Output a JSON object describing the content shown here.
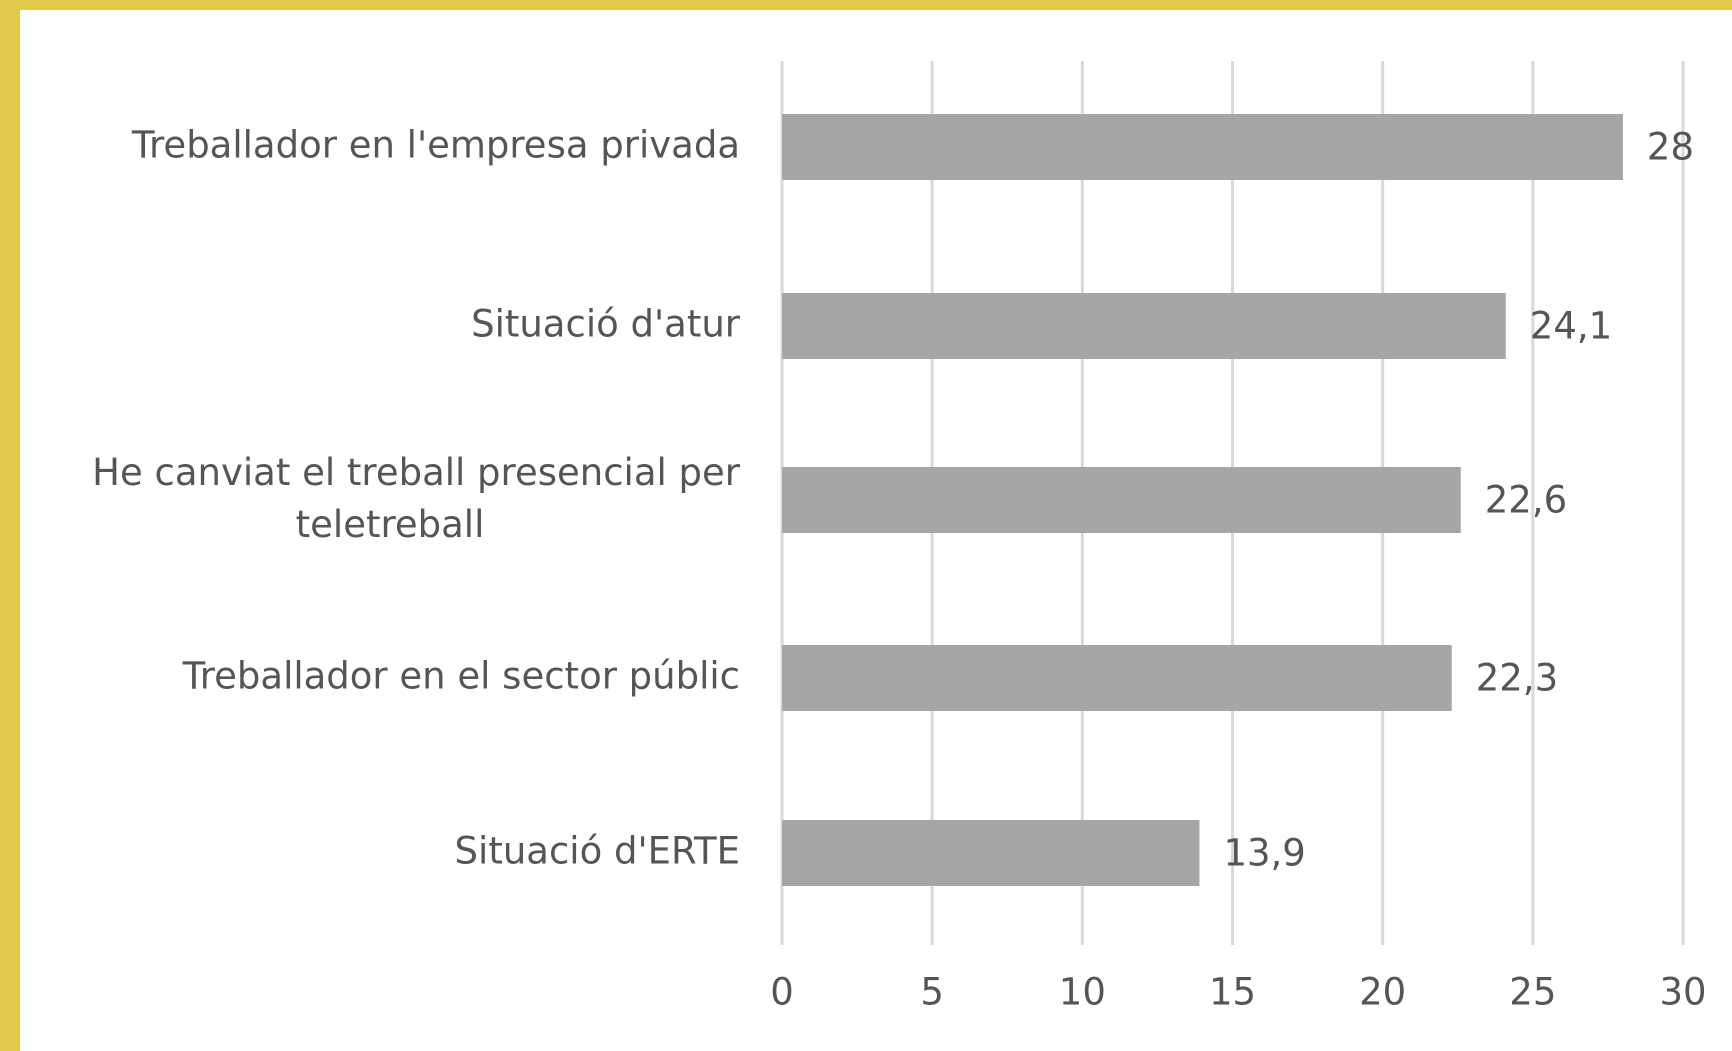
{
  "chart_data": {
    "type": "bar",
    "orientation": "horizontal",
    "categories": [
      "Treballador en l'empresa privada",
      "Situació d'atur",
      "He canviat el treball presencial per teletreball",
      "Treballador en el sector públic",
      "Situació d'ERTE"
    ],
    "values": [
      28,
      24.1,
      22.6,
      22.3,
      13.9
    ],
    "value_labels": [
      "28",
      "24,1",
      "22,6",
      "22,3",
      "13,9"
    ],
    "color": "#a6a6a6",
    "xlim": [
      0,
      30
    ],
    "xticks": [
      0,
      5,
      10,
      15,
      20,
      25,
      30
    ],
    "grid": true
  }
}
